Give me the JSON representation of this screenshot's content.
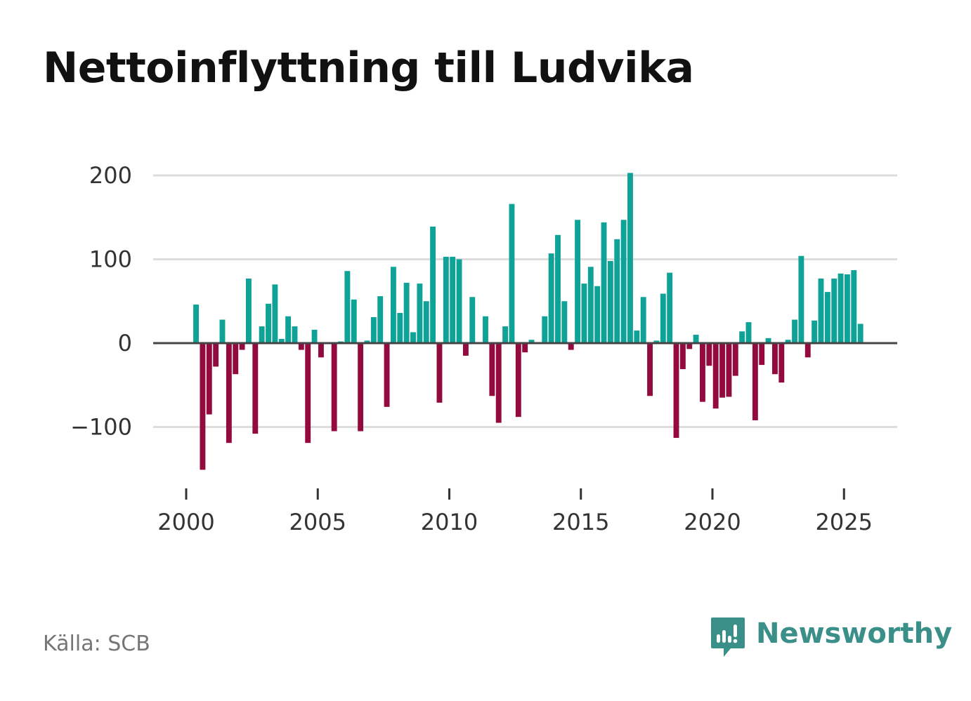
{
  "title": "Nettoinflyttning till Ludvika",
  "source_label": "Källa: SCB",
  "brand": {
    "name": "Newsworthy",
    "icon": "newsworthy-logo-icon"
  },
  "colors": {
    "positive": "#0fa398",
    "negative": "#930a3e",
    "zero_line": "#444444",
    "grid": "#dddddd",
    "brand": "#3a8f88"
  },
  "chart_data": {
    "type": "bar",
    "title": "Nettoinflyttning till Ludvika",
    "xlabel": "",
    "ylabel": "",
    "frequency": "quarterly",
    "start": 2000.375,
    "step": 0.25,
    "x_ticks": [
      2000,
      2005,
      2010,
      2015,
      2020,
      2025
    ],
    "x_tick_labels": [
      "2000",
      "2005",
      "2010",
      "2015",
      "2020",
      "2025"
    ],
    "y_ticks": [
      -100,
      0,
      100,
      200
    ],
    "y_tick_labels": [
      "−100",
      "0",
      "100",
      "200"
    ],
    "xlim": [
      1999.8,
      2027.0
    ],
    "ylim": [
      -175,
      215
    ],
    "grid": true,
    "values": [
      46,
      -151,
      -85,
      -28,
      28,
      -119,
      -37,
      -8,
      77,
      -108,
      20,
      47,
      70,
      5,
      32,
      20,
      -8,
      -119,
      16,
      -17,
      0,
      -105,
      2,
      86,
      52,
      -105,
      3,
      31,
      56,
      -76,
      91,
      36,
      72,
      13,
      71,
      50,
      139,
      -71,
      103,
      103,
      100,
      -15,
      55,
      0,
      32,
      -63,
      -95,
      20,
      166,
      -88,
      -11,
      4,
      0,
      32,
      107,
      129,
      50,
      -8,
      147,
      71,
      91,
      68,
      144,
      98,
      124,
      147,
      203,
      15,
      55,
      -63,
      3,
      59,
      84,
      -113,
      -31,
      -7,
      10,
      -70,
      -27,
      -78,
      -65,
      -64,
      -39,
      14,
      25,
      -92,
      -26,
      6,
      -37,
      -47,
      4,
      28,
      104,
      -17,
      27,
      77,
      61,
      77,
      83,
      82,
      87,
      23
    ]
  }
}
